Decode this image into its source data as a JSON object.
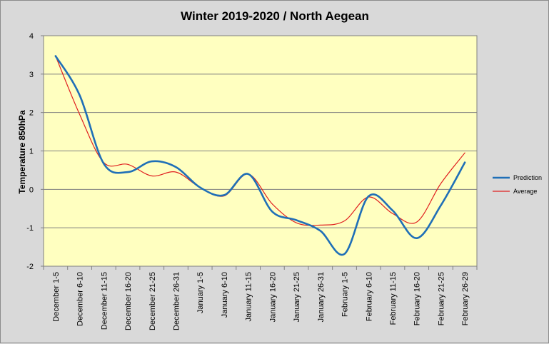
{
  "chart_data": {
    "type": "line",
    "title": "Winter 2019-2020 / North Aegean",
    "xlabel": "",
    "ylabel": "Temperature 850hPa",
    "ylim": [
      -2,
      4
    ],
    "yticks": [
      "4",
      "3",
      "2",
      "1",
      "0",
      "-1",
      "-2"
    ],
    "grid": true,
    "legend_position": "right",
    "categories": [
      "December 1-5",
      "December 6-10",
      "December 11-15",
      "December 16-20",
      "December 21-25",
      "December 26-31",
      "January 1-5",
      "January 6-10",
      "January 11-15",
      "January 16-20",
      "January 21-25",
      "January 26-31",
      "February 1-5",
      "February 6-10",
      "February 11-15",
      "February 16-20",
      "February 21-25",
      "February 26-29"
    ],
    "series": [
      {
        "name": "Prediction",
        "color": "#1f6fb7",
        "values": [
          3.47,
          2.45,
          0.67,
          0.45,
          0.73,
          0.58,
          0.05,
          -0.15,
          0.4,
          -0.58,
          -0.8,
          -1.08,
          -1.68,
          -0.18,
          -0.55,
          -1.27,
          -0.42,
          0.7
        ]
      },
      {
        "name": "Average",
        "color": "#e02020",
        "values": [
          3.47,
          1.95,
          0.7,
          0.65,
          0.35,
          0.45,
          0.05,
          -0.17,
          0.4,
          -0.38,
          -0.87,
          -0.93,
          -0.82,
          -0.2,
          -0.63,
          -0.85,
          0.15,
          0.95
        ]
      }
    ]
  },
  "colors": {
    "plot_background": "#ffffc0",
    "outer_background": "#d9d9d9",
    "gridline": "#808080"
  }
}
